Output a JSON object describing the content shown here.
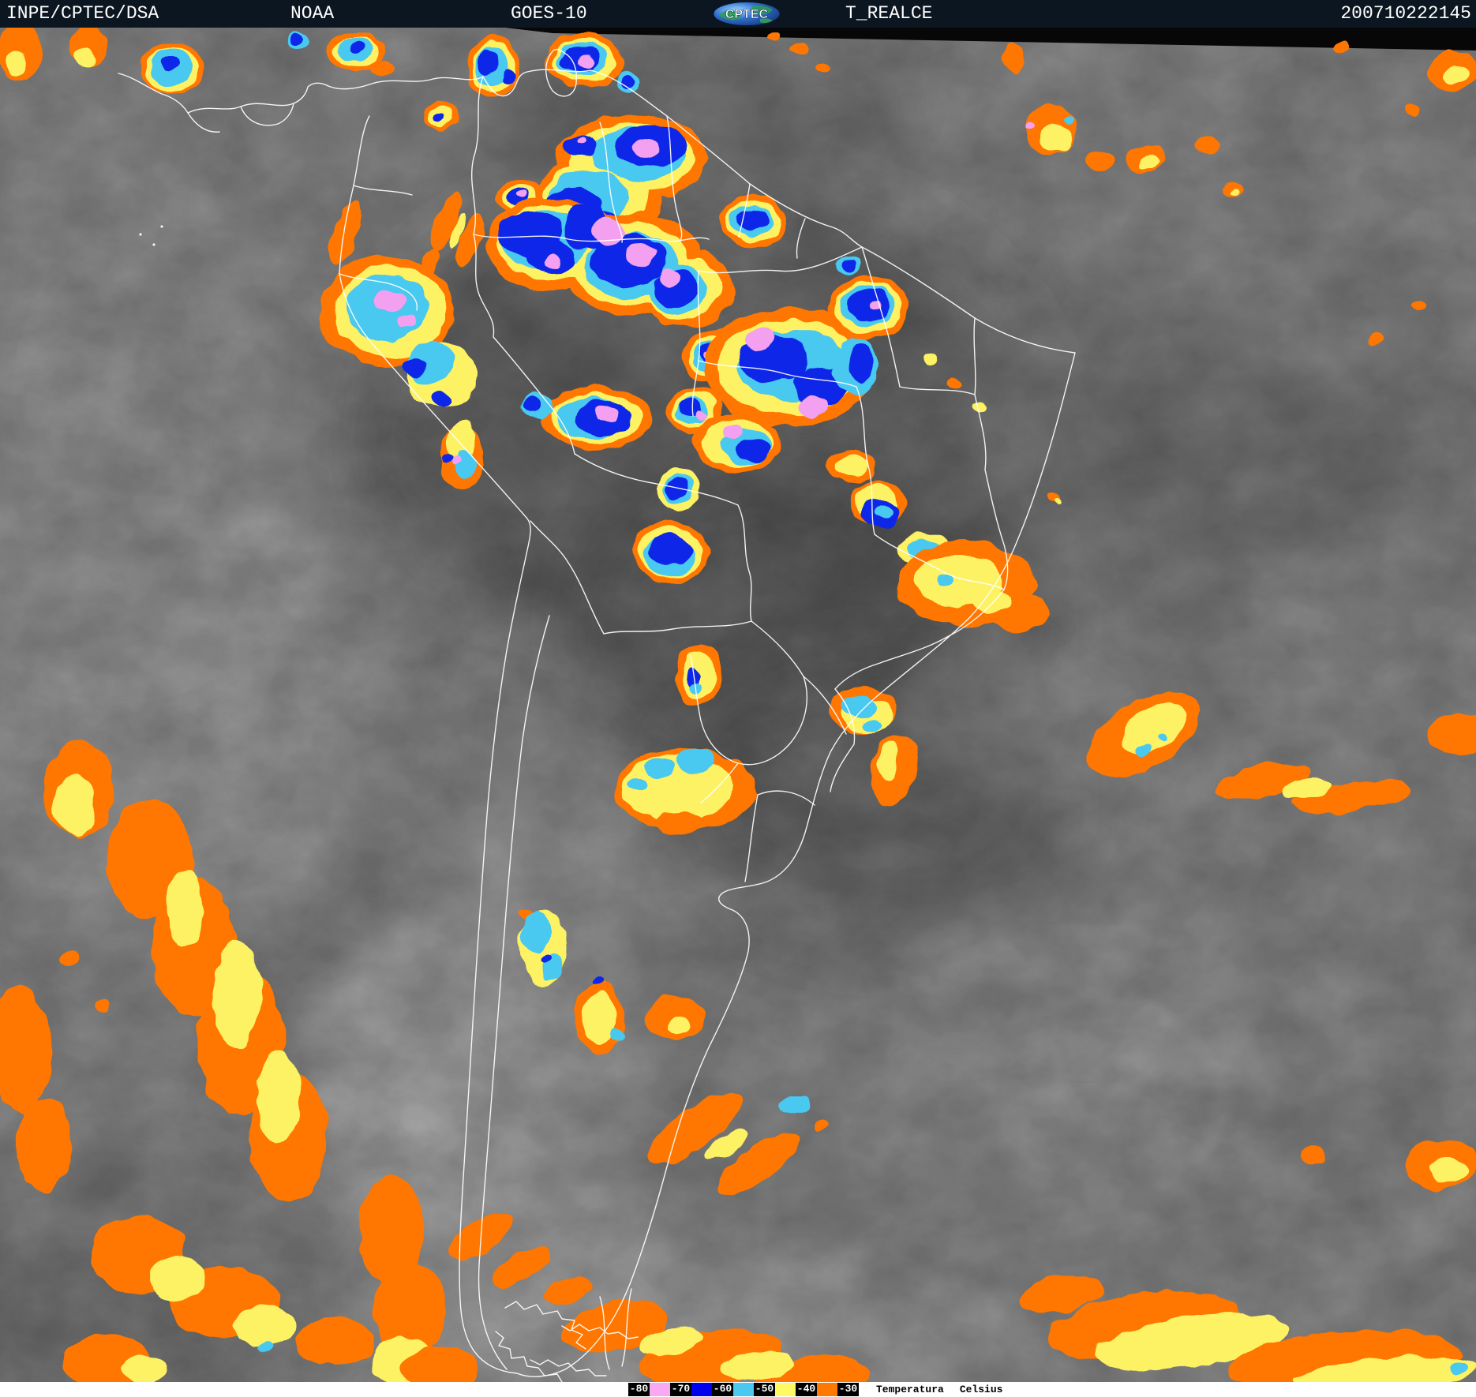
{
  "header": {
    "bg_color": "#0c1620",
    "items": [
      {
        "id": "agency",
        "label": "INPE/CPTEC/DSA"
      },
      {
        "id": "network",
        "label": "NOAA"
      },
      {
        "id": "satellite",
        "label": "GOES-10"
      },
      {
        "id": "product",
        "label": "T_REALCE"
      },
      {
        "id": "datetime",
        "label": "200710222145"
      }
    ],
    "logo_text": "CPTEC"
  },
  "legend": {
    "title": [
      "Temperatura",
      "Celsius"
    ],
    "items": [
      {
        "label": "-80",
        "swatch": "#f9a8f2"
      },
      {
        "label": "-70",
        "swatch": "#0000ee"
      },
      {
        "label": "-60",
        "swatch": "#4cc8f0"
      },
      {
        "label": "-50",
        "swatch": "#fff966"
      },
      {
        "label": "-40",
        "swatch": "#ff7800"
      },
      {
        "label": "-30",
        "swatch": null
      }
    ]
  },
  "palette": {
    "orange": "#ff7603",
    "yellow": "#fdf263",
    "cyan": "#49c8f0",
    "blue": "#0726e8",
    "pink": "#f2a0ef",
    "border": "#ffffff",
    "ocean_gray": "#757575"
  }
}
